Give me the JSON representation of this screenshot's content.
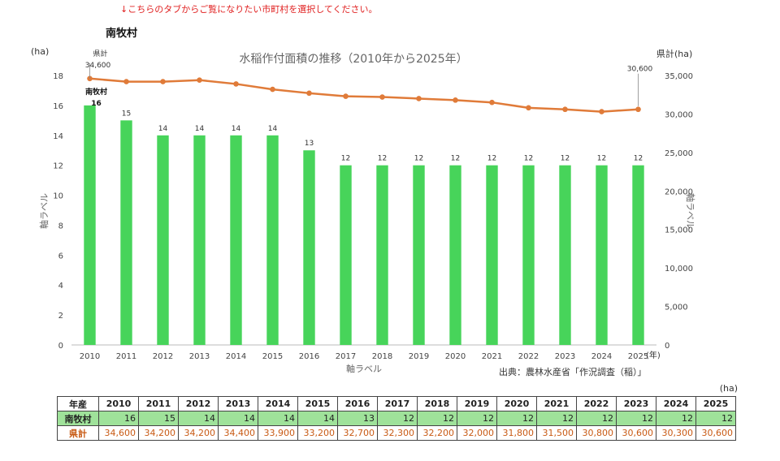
{
  "notice": "↓こちらのタブからご覧になりたい市町村を選択してください。",
  "town_heading": "南牧村",
  "chart_data": {
    "type": "bar+line",
    "title": "水稲作付面積の推移（2010年から2025年）",
    "categories": [
      "2010",
      "2011",
      "2012",
      "2013",
      "2014",
      "2015",
      "2016",
      "2017",
      "2018",
      "2019",
      "2020",
      "2021",
      "2022",
      "2023",
      "2024",
      "2025"
    ],
    "x_unit": "(年)",
    "xlabel": "軸ラベル",
    "left_axis": {
      "unit": "(ha)",
      "label": "軸ラベル",
      "ylim": [
        0,
        18
      ],
      "ticks": [
        "0",
        "2",
        "4",
        "6",
        "8",
        "10",
        "12",
        "14",
        "16",
        "18"
      ]
    },
    "right_axis": {
      "unit": "県計(ha)",
      "label": "軸ラベル",
      "ylim": [
        0,
        35000
      ],
      "ticks": [
        "0",
        "5,000",
        "10,000",
        "15,000",
        "20,000",
        "25,000",
        "30,000",
        "35,000"
      ]
    },
    "series": [
      {
        "name": "南牧村",
        "type": "bar",
        "axis": "left",
        "color": "#47d45a",
        "values": [
          16,
          15,
          14,
          14,
          14,
          14,
          13,
          12,
          12,
          12,
          12,
          12,
          12,
          12,
          12,
          12
        ]
      },
      {
        "name": "県計",
        "type": "line",
        "axis": "right",
        "color": "#e07b39",
        "values": [
          34600,
          34200,
          34200,
          34400,
          33900,
          33200,
          32700,
          32300,
          32200,
          32000,
          31800,
          31500,
          30800,
          30600,
          30300,
          30600
        ]
      }
    ],
    "annotations": {
      "first_line_label": "県計",
      "first_line_value": "34,600",
      "last_line_value": "30,600",
      "first_bar_label": "南牧村",
      "first_bar_value": "16"
    },
    "source": "出典：農林水産省「作況調査（稲）」"
  },
  "table": {
    "unit": "(ha)",
    "header_label": "年産",
    "years": [
      "2010",
      "2011",
      "2012",
      "2013",
      "2014",
      "2015",
      "2016",
      "2017",
      "2018",
      "2019",
      "2020",
      "2021",
      "2022",
      "2023",
      "2024",
      "2025"
    ],
    "town_label": "南牧村",
    "town_values": [
      "16",
      "15",
      "14",
      "14",
      "14",
      "14",
      "13",
      "12",
      "12",
      "12",
      "12",
      "12",
      "12",
      "12",
      "12",
      "12"
    ],
    "pref_label": "県計",
    "pref_values": [
      "34,600",
      "34,200",
      "34,200",
      "34,400",
      "33,900",
      "33,200",
      "32,700",
      "32,300",
      "32,200",
      "32,000",
      "31,800",
      "31,500",
      "30,800",
      "30,600",
      "30,300",
      "30,600"
    ]
  }
}
